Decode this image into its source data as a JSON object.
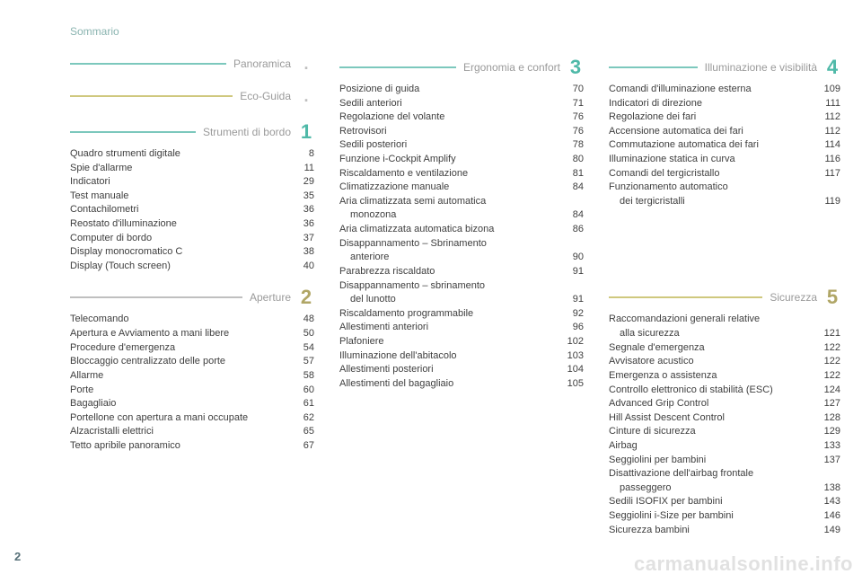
{
  "header_label": "Sommario",
  "page_number": "2",
  "watermark": "carmanualsonline.info",
  "colors": {
    "num_teal": "#4fb9a8",
    "num_olive": "#b0a666",
    "title_gray": "#9a9a9a",
    "rule_teal": "#7cc8bd",
    "rule_olive": "#cfc87e",
    "rule_gray": "#bfbfbf",
    "dot_gray": "#bfbfbf"
  },
  "columns": [
    {
      "sections": [
        {
          "title": "Panoramica",
          "num": ".",
          "num_kind": "dot",
          "title_color": "#9a9a9a",
          "rule_color": "#7cc8bd",
          "num_color": "#bfbfbf",
          "items": []
        },
        {
          "title": "Eco-Guida",
          "num": ".",
          "num_kind": "dot",
          "title_color": "#9a9a9a",
          "rule_color": "#cfc87e",
          "num_color": "#bfbfbf",
          "items": []
        },
        {
          "title": "Strumenti di bordo",
          "num": "1",
          "num_kind": "num",
          "title_color": "#9a9a9a",
          "rule_color": "#7cc8bd",
          "num_color": "#4fb9a8",
          "items": [
            {
              "label": "Quadro strumenti digitale",
              "page": "8"
            },
            {
              "label": "Spie d'allarme",
              "page": "11"
            },
            {
              "label": "Indicatori",
              "page": "29"
            },
            {
              "label": "Test manuale",
              "page": "35"
            },
            {
              "label": "Contachilometri",
              "page": "36"
            },
            {
              "label": "Reostato d'illuminazione",
              "page": "36"
            },
            {
              "label": "Computer di bordo",
              "page": "37"
            },
            {
              "label": "Display monocromatico C",
              "page": "38"
            },
            {
              "label": "Display (Touch screen)",
              "page": "40"
            }
          ]
        },
        {
          "title": "Aperture",
          "num": "2",
          "num_kind": "num",
          "title_color": "#9a9a9a",
          "rule_color": "#bfbfbf",
          "num_color": "#b0a666",
          "items": [
            {
              "label": "Telecomando",
              "page": "48"
            },
            {
              "label": "Apertura e Avviamento a mani libere",
              "page": "50"
            },
            {
              "label": "Procedure d'emergenza",
              "page": "54"
            },
            {
              "label": "Bloccaggio centralizzato delle porte",
              "page": "57"
            },
            {
              "label": "Allarme",
              "page": "58"
            },
            {
              "label": "Porte",
              "page": "60"
            },
            {
              "label": "Bagagliaio",
              "page": "61"
            },
            {
              "label": "Portellone con apertura a mani occupate",
              "page": "62"
            },
            {
              "label": "Alzacristalli elettrici",
              "page": "65"
            },
            {
              "label": "Tetto apribile panoramico",
              "page": "67"
            }
          ]
        }
      ]
    },
    {
      "sections": [
        {
          "title": "Ergonomia e confort",
          "num": "3",
          "num_kind": "num",
          "title_color": "#9a9a9a",
          "rule_color": "#7cc8bd",
          "num_color": "#4fb9a8",
          "items": [
            {
              "label": "Posizione di guida",
              "page": "70"
            },
            {
              "label": "Sedili anteriori",
              "page": "71"
            },
            {
              "label": "Regolazione del volante",
              "page": "76"
            },
            {
              "label": "Retrovisori",
              "page": "76"
            },
            {
              "label": "Sedili posteriori",
              "page": "78"
            },
            {
              "label": "Funzione i-Cockpit Amplify",
              "page": "80"
            },
            {
              "label": "Riscaldamento e ventilazione",
              "page": "81"
            },
            {
              "label": "Climatizzazione manuale",
              "page": "84"
            },
            {
              "label": "Aria climatizzata semi automatica",
              "page": ""
            },
            {
              "label": "monozona",
              "page": "84",
              "indent": true
            },
            {
              "label": "Aria climatizzata automatica bizona",
              "page": "86"
            },
            {
              "label": "Disappannamento – Sbrinamento",
              "page": ""
            },
            {
              "label": "anteriore",
              "page": "90",
              "indent": true
            },
            {
              "label": "Parabrezza riscaldato",
              "page": "91"
            },
            {
              "label": "Disappannamento – sbrinamento",
              "page": ""
            },
            {
              "label": "del lunotto",
              "page": "91",
              "indent": true
            },
            {
              "label": "Riscaldamento programmabile",
              "page": "92"
            },
            {
              "label": "Allestimenti anteriori",
              "page": "96"
            },
            {
              "label": "Plafoniere",
              "page": "102"
            },
            {
              "label": "Illuminazione dell'abitacolo",
              "page": "103"
            },
            {
              "label": "Allestimenti posteriori",
              "page": "104"
            },
            {
              "label": "Allestimenti del bagagliaio",
              "page": "105"
            }
          ]
        }
      ]
    },
    {
      "sections": [
        {
          "title": "Illuminazione e visibilità",
          "num": "4",
          "num_kind": "num",
          "title_color": "#9a9a9a",
          "rule_color": "#7cc8bd",
          "num_color": "#4fb9a8",
          "items": [
            {
              "label": "Comandi d'illuminazione esterna",
              "page": "109"
            },
            {
              "label": "Indicatori di direzione",
              "page": "111"
            },
            {
              "label": "Regolazione dei fari",
              "page": "112"
            },
            {
              "label": "Accensione automatica dei fari",
              "page": "112"
            },
            {
              "label": "Commutazione automatica dei fari",
              "page": "114"
            },
            {
              "label": "Illuminazione statica in curva",
              "page": "116"
            },
            {
              "label": "Comandi del tergicristallo",
              "page": "117"
            },
            {
              "label": "Funzionamento automatico",
              "page": ""
            },
            {
              "label": "dei tergicristalli",
              "page": "119",
              "indent": true
            }
          ]
        },
        {
          "title": "Sicurezza",
          "num": "5",
          "num_kind": "num",
          "title_color": "#9a9a9a",
          "rule_color": "#cfc87e",
          "num_color": "#b0a666",
          "spacer_before": 72,
          "items": [
            {
              "label": "Raccomandazioni generali relative",
              "page": ""
            },
            {
              "label": "alla sicurezza",
              "page": "121",
              "indent": true
            },
            {
              "label": "Segnale d'emergenza",
              "page": "122"
            },
            {
              "label": "Avvisatore acustico",
              "page": "122"
            },
            {
              "label": "Emergenza o assistenza",
              "page": "122"
            },
            {
              "label": "Controllo elettronico di stabilità (ESC)",
              "page": "124"
            },
            {
              "label": "Advanced Grip Control",
              "page": "127"
            },
            {
              "label": "Hill Assist Descent Control",
              "page": "128"
            },
            {
              "label": "Cinture di sicurezza",
              "page": "129"
            },
            {
              "label": "Airbag",
              "page": "133"
            },
            {
              "label": "Seggiolini per bambini",
              "page": "137"
            },
            {
              "label": "Disattivazione dell'airbag frontale",
              "page": ""
            },
            {
              "label": "passeggero",
              "page": "138",
              "indent": true
            },
            {
              "label": "Sedili ISOFIX per bambini",
              "page": "143"
            },
            {
              "label": "Seggiolini i-Size per bambini",
              "page": "146"
            },
            {
              "label": "Sicurezza bambini",
              "page": "149"
            }
          ]
        }
      ]
    }
  ]
}
